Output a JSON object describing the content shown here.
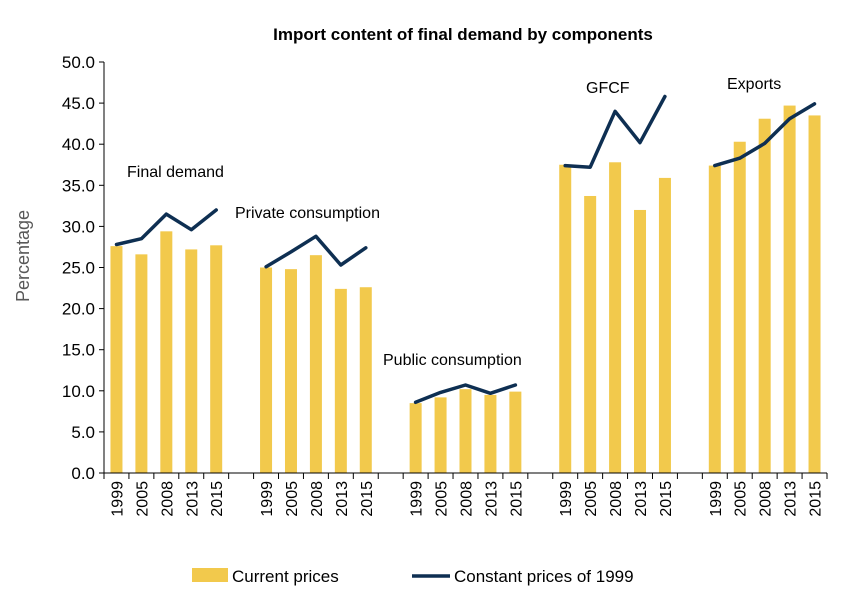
{
  "chart_data": {
    "type": "bar",
    "title": "Import content of final demand by components",
    "ylabel": "Percentage",
    "xlabel": "",
    "ylim": [
      0,
      50
    ],
    "yticks": [
      "0.0",
      "5.0",
      "10.0",
      "15.0",
      "20.0",
      "25.0",
      "30.0",
      "35.0",
      "40.0",
      "45.0",
      "50.0"
    ],
    "grid": false,
    "categories": [
      "1999",
      "2005",
      "2008",
      "2013",
      "2015"
    ],
    "groups": [
      {
        "name": "Final demand",
        "bars": [
          27.6,
          26.6,
          29.4,
          27.2,
          27.7
        ],
        "line": [
          27.8,
          28.5,
          31.5,
          29.6,
          32.0
        ]
      },
      {
        "name": "Private consumption",
        "bars": [
          25.0,
          24.8,
          26.5,
          22.4,
          22.6
        ],
        "line": [
          25.1,
          26.9,
          28.8,
          25.3,
          27.4
        ]
      },
      {
        "name": "Public consumption",
        "bars": [
          8.5,
          9.2,
          10.2,
          9.5,
          9.9
        ],
        "line": [
          8.6,
          9.8,
          10.7,
          9.7,
          10.7
        ]
      },
      {
        "name": "GFCF",
        "bars": [
          37.5,
          33.7,
          37.8,
          32.0,
          35.9
        ],
        "line": [
          37.4,
          37.2,
          44.0,
          40.2,
          45.8
        ]
      },
      {
        "name": "Exports",
        "bars": [
          37.4,
          40.3,
          43.1,
          44.7,
          43.5
        ],
        "line": [
          37.4,
          38.3,
          40.1,
          43.1,
          44.9
        ]
      }
    ],
    "series": [
      {
        "name": "Current prices",
        "type": "bar",
        "color": "#F2C94C"
      },
      {
        "name": "Constant prices of 1999",
        "type": "line",
        "color": "#0E2F52"
      }
    ],
    "legend_position": "bottom"
  }
}
